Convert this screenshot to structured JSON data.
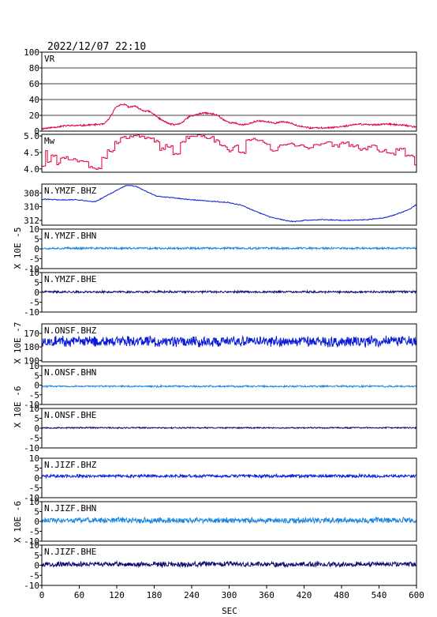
{
  "header": {
    "datetime": "2022/12/07 22:10"
  },
  "colors": {
    "red": "#e0003c",
    "blue": "#0a1ad8",
    "light_blue": "#1a86e0",
    "navy": "#0a0a70"
  },
  "chart_data": {
    "type": "line",
    "xlabel": "SEC",
    "xlim": [
      0,
      600
    ],
    "x_ticks": [
      "0",
      "60",
      "120",
      "180",
      "240",
      "300",
      "360",
      "420",
      "480",
      "540",
      "600"
    ],
    "groups": [
      {
        "ylabel": "",
        "panels": [
          {
            "name": "VR",
            "color": "red",
            "kind": "line",
            "ylim": [
              0,
              100
            ],
            "grid": true,
            "yticks": [
              "100",
              "80",
              "60",
              "40",
              "20",
              "0"
            ],
            "points": [
              [
                0,
                3
              ],
              [
                20,
                5
              ],
              [
                40,
                7
              ],
              [
                60,
                7
              ],
              [
                80,
                8
              ],
              [
                100,
                9
              ],
              [
                110,
                18
              ],
              [
                118,
                30
              ],
              [
                124,
                33
              ],
              [
                132,
                34
              ],
              [
                140,
                30
              ],
              [
                148,
                32
              ],
              [
                155,
                29
              ],
              [
                162,
                26
              ],
              [
                172,
                25
              ],
              [
                180,
                21
              ],
              [
                192,
                14
              ],
              [
                205,
                9
              ],
              [
                215,
                8
              ],
              [
                225,
                11
              ],
              [
                235,
                18
              ],
              [
                248,
                21
              ],
              [
                260,
                23
              ],
              [
                272,
                22
              ],
              [
                282,
                20
              ],
              [
                290,
                15
              ],
              [
                300,
                11
              ],
              [
                310,
                10
              ],
              [
                320,
                8
              ],
              [
                330,
                9
              ],
              [
                345,
                13
              ],
              [
                360,
                12
              ],
              [
                372,
                10
              ],
              [
                385,
                12
              ],
              [
                400,
                10
              ],
              [
                410,
                7
              ],
              [
                430,
                4
              ],
              [
                450,
                4
              ],
              [
                470,
                5
              ],
              [
                490,
                7
              ],
              [
                510,
                9
              ],
              [
                530,
                8
              ],
              [
                550,
                9
              ],
              [
                570,
                8
              ],
              [
                585,
                7
              ],
              [
                600,
                5
              ]
            ],
            "noise": 1.2,
            "seed": 11
          },
          {
            "name": "Mw",
            "color": "red",
            "kind": "step",
            "ylim": [
              3.9,
              5.05
            ],
            "grid": false,
            "yticks": [
              "5.0",
              "4.5",
              "4.0"
            ],
            "points": [
              [
                0,
                4.1
              ],
              [
                5,
                4.55
              ],
              [
                9,
                4.2
              ],
              [
                14,
                4.4
              ],
              [
                22,
                4.15
              ],
              [
                30,
                4.35
              ],
              [
                42,
                4.3
              ],
              [
                55,
                4.25
              ],
              [
                65,
                4.2
              ],
              [
                75,
                4.05
              ],
              [
                85,
                4.0
              ],
              [
                95,
                4.35
              ],
              [
                105,
                4.55
              ],
              [
                115,
                4.8
              ],
              [
                125,
                4.95
              ],
              [
                140,
                5.0
              ],
              [
                165,
                4.95
              ],
              [
                180,
                4.85
              ],
              [
                188,
                4.6
              ],
              [
                198,
                4.7
              ],
              [
                210,
                4.45
              ],
              [
                220,
                4.8
              ],
              [
                230,
                4.95
              ],
              [
                240,
                5.0
              ],
              [
                260,
                4.95
              ],
              [
                275,
                4.85
              ],
              [
                285,
                4.7
              ],
              [
                295,
                4.55
              ],
              [
                305,
                4.7
              ],
              [
                315,
                4.5
              ],
              [
                325,
                4.9
              ],
              [
                340,
                4.85
              ],
              [
                355,
                4.75
              ],
              [
                365,
                4.55
              ],
              [
                378,
                4.7
              ],
              [
                392,
                4.75
              ],
              [
                405,
                4.7
              ],
              [
                420,
                4.65
              ],
              [
                435,
                4.75
              ],
              [
                450,
                4.8
              ],
              [
                465,
                4.7
              ],
              [
                475,
                4.8
              ],
              [
                490,
                4.7
              ],
              [
                505,
                4.6
              ],
              [
                520,
                4.7
              ],
              [
                535,
                4.55
              ],
              [
                550,
                4.45
              ],
              [
                565,
                4.6
              ],
              [
                580,
                4.4
              ],
              [
                595,
                4.15
              ],
              [
                600,
                4.1
              ]
            ],
            "noise": 0.08,
            "seed": 23
          }
        ]
      },
      {
        "ylabel": "X 10E -5",
        "panels": [
          {
            "name": "N.YMZF.BHZ",
            "color": "blue",
            "kind": "line",
            "ylim": [
              -312.7,
              -306.7
            ],
            "grid": false,
            "yticks": [
              "308",
              "310",
              "312"
            ],
            "points": [
              [
                0,
                -308.9
              ],
              [
                30,
                -309.0
              ],
              [
                60,
                -309.0
              ],
              [
                85,
                -309.3
              ],
              [
                100,
                -308.6
              ],
              [
                120,
                -307.6
              ],
              [
                135,
                -306.9
              ],
              [
                150,
                -307.0
              ],
              [
                165,
                -307.7
              ],
              [
                185,
                -308.5
              ],
              [
                210,
                -308.7
              ],
              [
                240,
                -309.0
              ],
              [
                270,
                -309.2
              ],
              [
                300,
                -309.4
              ],
              [
                320,
                -309.8
              ],
              [
                340,
                -310.6
              ],
              [
                365,
                -311.5
              ],
              [
                390,
                -312.0
              ],
              [
                405,
                -312.2
              ],
              [
                420,
                -312.0
              ],
              [
                450,
                -311.9
              ],
              [
                480,
                -312.0
              ],
              [
                520,
                -311.9
              ],
              [
                550,
                -311.6
              ],
              [
                575,
                -310.9
              ],
              [
                590,
                -310.3
              ],
              [
                600,
                -309.7
              ]
            ],
            "noise": 0.08,
            "seed": 31
          },
          {
            "name": "N.YMZF.BHN",
            "color": "light_blue",
            "kind": "line",
            "ylim": [
              -10,
              10
            ],
            "grid": false,
            "yticks": [
              "10",
              "5",
              "0",
              "-5",
              "-10"
            ],
            "points": [
              [
                0,
                0.3
              ],
              [
                600,
                0.3
              ]
            ],
            "noise": 0.6,
            "seed": 37
          },
          {
            "name": "N.YMZF.BHE",
            "color": "navy",
            "kind": "line",
            "ylim": [
              -10,
              10
            ],
            "grid": false,
            "yticks": [
              "10",
              "5",
              "0",
              "-5",
              "-10"
            ],
            "points": [
              [
                0,
                0.2
              ],
              [
                600,
                0.2
              ]
            ],
            "noise": 0.6,
            "seed": 41
          }
        ]
      },
      {
        "ylabel": "X 10E -7",
        "panels": [
          {
            "name": "N.ONSF.BHZ",
            "color": "blue",
            "kind": "line",
            "ylim": [
              -191,
              -163
            ],
            "grid": false,
            "yticks": [
              "170",
              "180",
              "190"
            ],
            "points": [
              [
                0,
                -176
              ],
              [
                600,
                -176
              ]
            ],
            "noise": 4.5,
            "seed": 43
          }
        ]
      },
      {
        "ylabel": "X 10E -6",
        "panels": [
          {
            "name": "N.ONSF.BHN",
            "color": "light_blue",
            "kind": "line",
            "ylim": [
              -10,
              10
            ],
            "grid": false,
            "yticks": [
              "10",
              "5",
              "0",
              "-5",
              "-10"
            ],
            "points": [
              [
                0,
                -0.6
              ],
              [
                600,
                -0.6
              ]
            ],
            "noise": 0.5,
            "seed": 47
          },
          {
            "name": "N.ONSF.BHE",
            "color": "navy",
            "kind": "line",
            "ylim": [
              -10,
              10
            ],
            "grid": false,
            "yticks": [
              "10",
              "5",
              "0",
              "-5",
              "-10"
            ],
            "points": [
              [
                0,
                0.2
              ],
              [
                600,
                0.2
              ]
            ],
            "noise": 0.4,
            "seed": 53
          }
        ]
      },
      {
        "ylabel": "X 10E -6",
        "panels": [
          {
            "name": "N.JIZF.BHZ",
            "color": "blue",
            "kind": "line",
            "ylim": [
              -10,
              10
            ],
            "grid": false,
            "yticks": [
              "10",
              "5",
              "0",
              "-5",
              "-10"
            ],
            "points": [
              [
                0,
                1.0
              ],
              [
                600,
                1.0
              ]
            ],
            "noise": 0.9,
            "seed": 59
          },
          {
            "name": "N.JIZF.BHN",
            "color": "light_blue",
            "kind": "line",
            "ylim": [
              -10,
              10
            ],
            "grid": false,
            "yticks": [
              "10",
              "5",
              "0",
              "-5",
              "-10"
            ],
            "points": [
              [
                0,
                0.5
              ],
              [
                600,
                0.5
              ]
            ],
            "noise": 1.6,
            "seed": 61
          },
          {
            "name": "N.JIZF.BHE",
            "color": "navy",
            "kind": "line",
            "ylim": [
              -10,
              10
            ],
            "grid": false,
            "yticks": [
              "10",
              "5",
              "0",
              "-5",
              "-10"
            ],
            "points": [
              [
                0,
                0.5
              ],
              [
                600,
                0.5
              ]
            ],
            "noise": 1.4,
            "seed": 67
          }
        ]
      }
    ]
  }
}
